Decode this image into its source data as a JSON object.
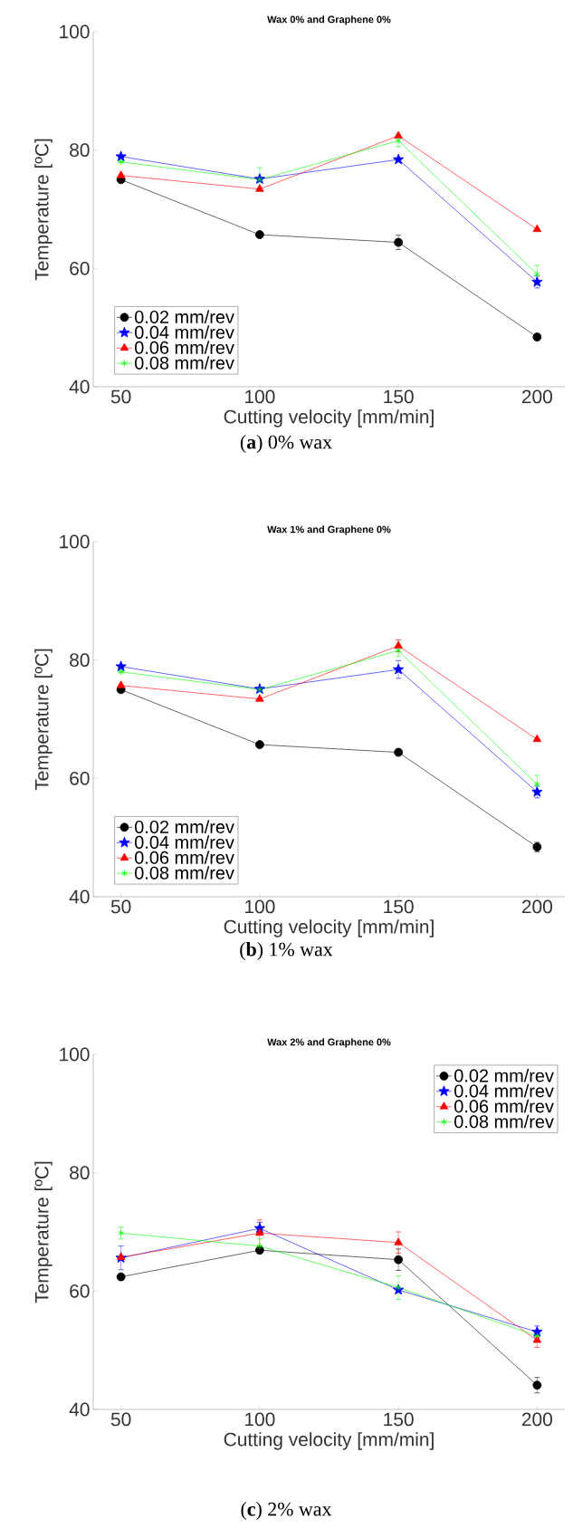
{
  "chart_data": [
    {
      "type": "line",
      "title": "Wax 0% and Graphene 0%",
      "xlabel": "Cutting velocity [mm/min]",
      "ylabel": "Temperature [ºC]",
      "x": [
        50,
        100,
        150,
        200
      ],
      "xlim": [
        40,
        210
      ],
      "ylim": [
        40,
        100
      ],
      "xticks": [
        50,
        100,
        150,
        200
      ],
      "yticks": [
        40,
        60,
        80,
        100
      ],
      "legend": "bottom left",
      "annotations": [
        "(**a**) 0% wax"
      ],
      "series": [
        {
          "name": "0.02 mm/rev",
          "color": "#000000",
          "marker": "circle",
          "values": [
            75.0,
            65.7,
            64.4,
            48.4
          ],
          "errors": [
            null,
            null,
            1.2,
            null
          ]
        },
        {
          "name": "0.04 mm/rev",
          "color": "#0000ff",
          "marker": "star",
          "values": [
            78.9,
            75.1,
            78.4,
            57.7
          ],
          "errors": [
            null,
            null,
            null,
            1.0
          ]
        },
        {
          "name": "0.06 mm/rev",
          "color": "#ff0000",
          "marker": "triangle",
          "values": [
            75.7,
            73.4,
            82.4,
            66.6
          ]
        },
        {
          "name": "0.08 mm/rev",
          "color": "#00ff00",
          "marker": "cross",
          "values": [
            78.0,
            75.0,
            81.6,
            59.0
          ],
          "errors": [
            null,
            2.0,
            1.0,
            1.5
          ]
        }
      ]
    },
    {
      "type": "line",
      "title": "Wax 1% and Graphene 0%",
      "xlabel": "Cutting velocity [mm/min]",
      "ylabel": "Temperature [ºC]",
      "x": [
        50,
        100,
        150,
        200
      ],
      "xlim": [
        40,
        210
      ],
      "ylim": [
        40,
        100
      ],
      "xticks": [
        50,
        100,
        150,
        200
      ],
      "yticks": [
        40,
        60,
        80,
        100
      ],
      "legend": "bottom left",
      "annotations": [
        "(**b**) 1% wax"
      ],
      "series": [
        {
          "name": "0.02 mm/rev",
          "color": "#000000",
          "marker": "circle",
          "values": [
            75.0,
            65.7,
            64.4,
            48.4
          ],
          "errors": [
            null,
            null,
            null,
            0.8
          ]
        },
        {
          "name": "0.04 mm/rev",
          "color": "#0000ff",
          "marker": "star",
          "values": [
            78.9,
            75.1,
            78.4,
            57.7
          ],
          "errors": [
            null,
            null,
            1.5,
            1.0
          ]
        },
        {
          "name": "0.06 mm/rev",
          "color": "#ff0000",
          "marker": "triangle",
          "values": [
            75.7,
            73.4,
            82.4,
            66.6
          ],
          "errors": [
            null,
            null,
            1.0,
            null
          ]
        },
        {
          "name": "0.08 mm/rev",
          "color": "#00ff00",
          "marker": "cross",
          "values": [
            78.0,
            75.0,
            81.6,
            59.0
          ],
          "errors": [
            null,
            null,
            1.0,
            1.5
          ]
        }
      ]
    },
    {
      "type": "line",
      "title": "Wax 2% and Graphene 0%",
      "xlabel": "Cutting velocity [mm/min]",
      "ylabel": "Temperature [ºC]",
      "x": [
        50,
        100,
        150,
        200
      ],
      "xlim": [
        40,
        210
      ],
      "ylim": [
        40,
        100
      ],
      "xticks": [
        50,
        100,
        150,
        200
      ],
      "yticks": [
        40,
        60,
        80,
        100
      ],
      "legend": "top right",
      "annotations": [
        "(**c**) 2% wax"
      ],
      "series": [
        {
          "name": "0.02 mm/rev",
          "color": "#000000",
          "marker": "circle",
          "values": [
            62.4,
            66.9,
            65.3,
            44.1
          ],
          "errors": [
            null,
            null,
            1.8,
            1.3
          ]
        },
        {
          "name": "0.04 mm/rev",
          "color": "#0000ff",
          "marker": "star",
          "values": [
            65.6,
            70.6,
            60.2,
            53.1
          ],
          "errors": [
            2.0,
            1.0,
            null,
            1.0
          ]
        },
        {
          "name": "0.06 mm/rev",
          "color": "#ff0000",
          "marker": "triangle",
          "values": [
            65.7,
            69.8,
            68.2,
            51.7
          ],
          "errors": [
            null,
            2.2,
            1.8,
            1.2
          ]
        },
        {
          "name": "0.08 mm/rev",
          "color": "#00ff00",
          "marker": "cross",
          "values": [
            69.8,
            67.6,
            60.6,
            52.4
          ],
          "errors": [
            1.0,
            1.2,
            2.0,
            null
          ]
        }
      ]
    }
  ]
}
